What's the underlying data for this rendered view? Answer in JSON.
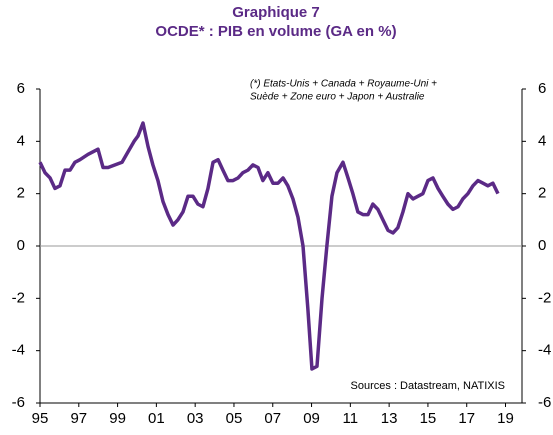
{
  "chart_data": {
    "type": "line",
    "title": "Graphique 7",
    "subtitle": "OCDE* : PIB en volume (GA en %)",
    "annotation": "(*) Etats-Unis + Canada + Royaume-Uni +",
    "annotation2": "Suède + Zone euro + Japon + Australie",
    "source": "Sources : Datastream, NATIXIS",
    "x": [
      1995.0,
      1995.26,
      1995.52,
      1995.77,
      1996.03,
      1996.29,
      1996.55,
      1996.8,
      1997.06,
      1997.47,
      1997.99,
      1998.25,
      1998.51,
      1998.87,
      1999.23,
      1999.54,
      1999.85,
      2000.05,
      2000.31,
      2000.57,
      2000.82,
      2001.08,
      2001.34,
      2001.6,
      2001.86,
      2002.11,
      2002.37,
      2002.63,
      2002.89,
      2003.14,
      2003.4,
      2003.66,
      2003.92,
      2004.18,
      2004.43,
      2004.69,
      2004.95,
      2005.21,
      2005.46,
      2005.72,
      2005.98,
      2006.24,
      2006.49,
      2006.75,
      2007.01,
      2007.27,
      2007.53,
      2007.78,
      2008.04,
      2008.3,
      2008.56,
      2008.81,
      2009.02,
      2009.28,
      2009.54,
      2009.79,
      2010.05,
      2010.31,
      2010.62,
      2010.88,
      2011.13,
      2011.39,
      2011.65,
      2011.91,
      2012.16,
      2012.42,
      2012.68,
      2012.94,
      2013.2,
      2013.45,
      2013.71,
      2013.97,
      2014.23,
      2014.48,
      2014.74,
      2015.0,
      2015.26,
      2015.52,
      2015.77,
      2016.03,
      2016.29,
      2016.55,
      2016.8,
      2017.06,
      2017.32,
      2017.58,
      2017.84,
      2018.09,
      2018.35,
      2018.61
    ],
    "series": [
      {
        "name": "OCDE",
        "color": "#5b2a86",
        "values": [
          3.2,
          2.8,
          2.6,
          2.2,
          2.3,
          2.9,
          2.9,
          3.2,
          3.3,
          3.5,
          3.7,
          3.0,
          3.0,
          3.1,
          3.2,
          3.6,
          4.0,
          4.2,
          4.7,
          3.8,
          3.1,
          2.5,
          1.7,
          1.2,
          0.8,
          1.0,
          1.3,
          1.9,
          1.9,
          1.6,
          1.5,
          2.2,
          3.2,
          3.3,
          2.9,
          2.5,
          2.5,
          2.6,
          2.8,
          2.9,
          3.1,
          3.0,
          2.5,
          2.8,
          2.4,
          2.4,
          2.6,
          2.3,
          1.8,
          1.1,
          0.0,
          -2.4,
          -4.7,
          -4.6,
          -2.0,
          0.0,
          1.9,
          2.8,
          3.2,
          2.6,
          2.0,
          1.3,
          1.2,
          1.2,
          1.6,
          1.4,
          1.0,
          0.6,
          0.5,
          0.7,
          1.3,
          2.0,
          1.8,
          1.9,
          2.0,
          2.5,
          2.6,
          2.2,
          1.9,
          1.6,
          1.4,
          1.5,
          1.8,
          2.0,
          2.3,
          2.5,
          2.4,
          2.3,
          2.4,
          2.0
        ]
      }
    ],
    "xlim": [
      1995,
      2019.85
    ],
    "xticks": [
      {
        "value": 1995,
        "label": "95"
      },
      {
        "value": 1997,
        "label": "97"
      },
      {
        "value": 1999,
        "label": "99"
      },
      {
        "value": 2001,
        "label": "01"
      },
      {
        "value": 2003,
        "label": "03"
      },
      {
        "value": 2005,
        "label": "05"
      },
      {
        "value": 2007,
        "label": "07"
      },
      {
        "value": 2009,
        "label": "09"
      },
      {
        "value": 2011,
        "label": "11"
      },
      {
        "value": 2013,
        "label": "13"
      },
      {
        "value": 2015,
        "label": "15"
      },
      {
        "value": 2017,
        "label": "17"
      },
      {
        "value": 2019,
        "label": "19"
      }
    ],
    "ylim": [
      -6,
      6
    ],
    "yticks": [
      -6,
      -4,
      -2,
      0,
      2,
      4,
      6
    ]
  }
}
